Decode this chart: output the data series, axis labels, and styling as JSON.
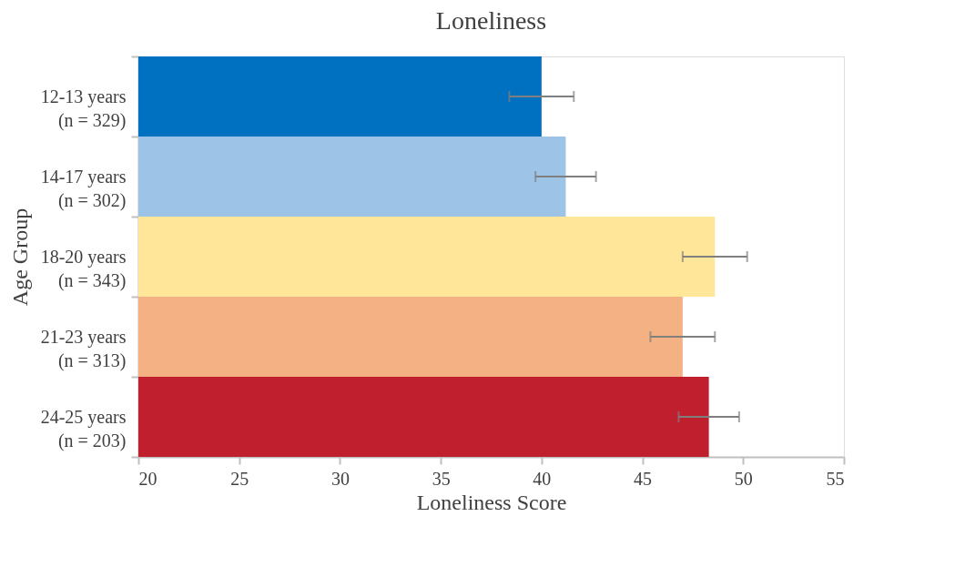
{
  "chart_data": {
    "type": "bar",
    "orientation": "horizontal",
    "title": "Loneliness",
    "xlabel": "Loneliness Score",
    "ylabel": "Age Group",
    "categories": [
      "12-13 years\n(n = 329)",
      "14-17 years\n(n = 302)",
      "18-20 years\n(n = 343)",
      "21-23 years\n(n = 313)",
      "24-25 years\n(n = 203)"
    ],
    "values": [
      40.0,
      41.2,
      48.6,
      47.0,
      48.3
    ],
    "errors": [
      1.6,
      1.5,
      1.6,
      1.6,
      1.5
    ],
    "colors": [
      "#0070c0",
      "#9dc3e6",
      "#ffe699",
      "#f4b183",
      "#c0202e"
    ],
    "xlim": [
      20,
      55
    ],
    "xticks": [
      20,
      25,
      30,
      35,
      40,
      45,
      50,
      55
    ],
    "grid": false,
    "legend": false
  }
}
